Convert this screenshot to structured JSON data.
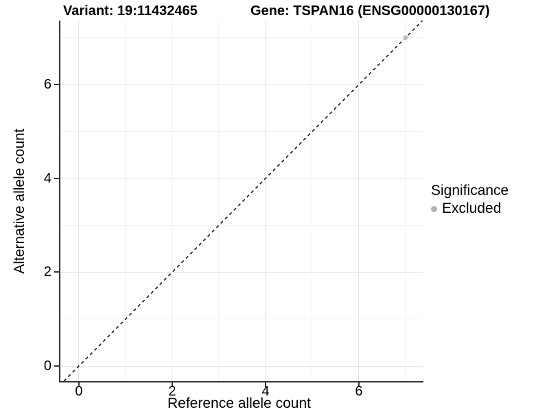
{
  "header": {
    "variant_title": "Variant: 19:11432465",
    "gene_title": "Gene: TSPAN16 (ENSG00000130167)"
  },
  "axes": {
    "xlabel": "Reference allele count",
    "ylabel": "Alternative allele count"
  },
  "legend": {
    "title": "Significance",
    "items": [
      {
        "label": "Excluded",
        "color": "#b3b3b3"
      }
    ],
    "position": "right"
  },
  "colors": {
    "grid_major": "#e6e6e6",
    "grid_minor": "#f3f3f3",
    "axis_line": "#333333",
    "identity_line": "#111111",
    "point_excluded": "#bebebe",
    "background": "#ffffff",
    "text": "#000000"
  },
  "chart_data": {
    "type": "scatter",
    "title_left": "Variant: 19:11432465",
    "title_right": "Gene: TSPAN16 (ENSG00000130167)",
    "xlabel": "Reference allele count",
    "ylabel": "Alternative allele count",
    "xlim": [
      -0.397,
      7.368
    ],
    "ylim": [
      -0.322,
      7.363
    ],
    "x_major_ticks": [
      0,
      2,
      4,
      6
    ],
    "y_major_ticks": [
      0,
      2,
      4,
      6
    ],
    "x_minor_ticks": [
      1,
      3,
      5,
      7
    ],
    "y_minor_ticks": [
      1,
      3,
      5,
      7
    ],
    "grid": true,
    "identity_line": {
      "style": "dashed",
      "from": "corner to corner",
      "equation": "y = x"
    },
    "series": [
      {
        "name": "Excluded",
        "points": [
          {
            "x": 7,
            "y": 7
          }
        ],
        "color": "#bebebe",
        "marker": "circle"
      }
    ],
    "legend_position": "right"
  }
}
